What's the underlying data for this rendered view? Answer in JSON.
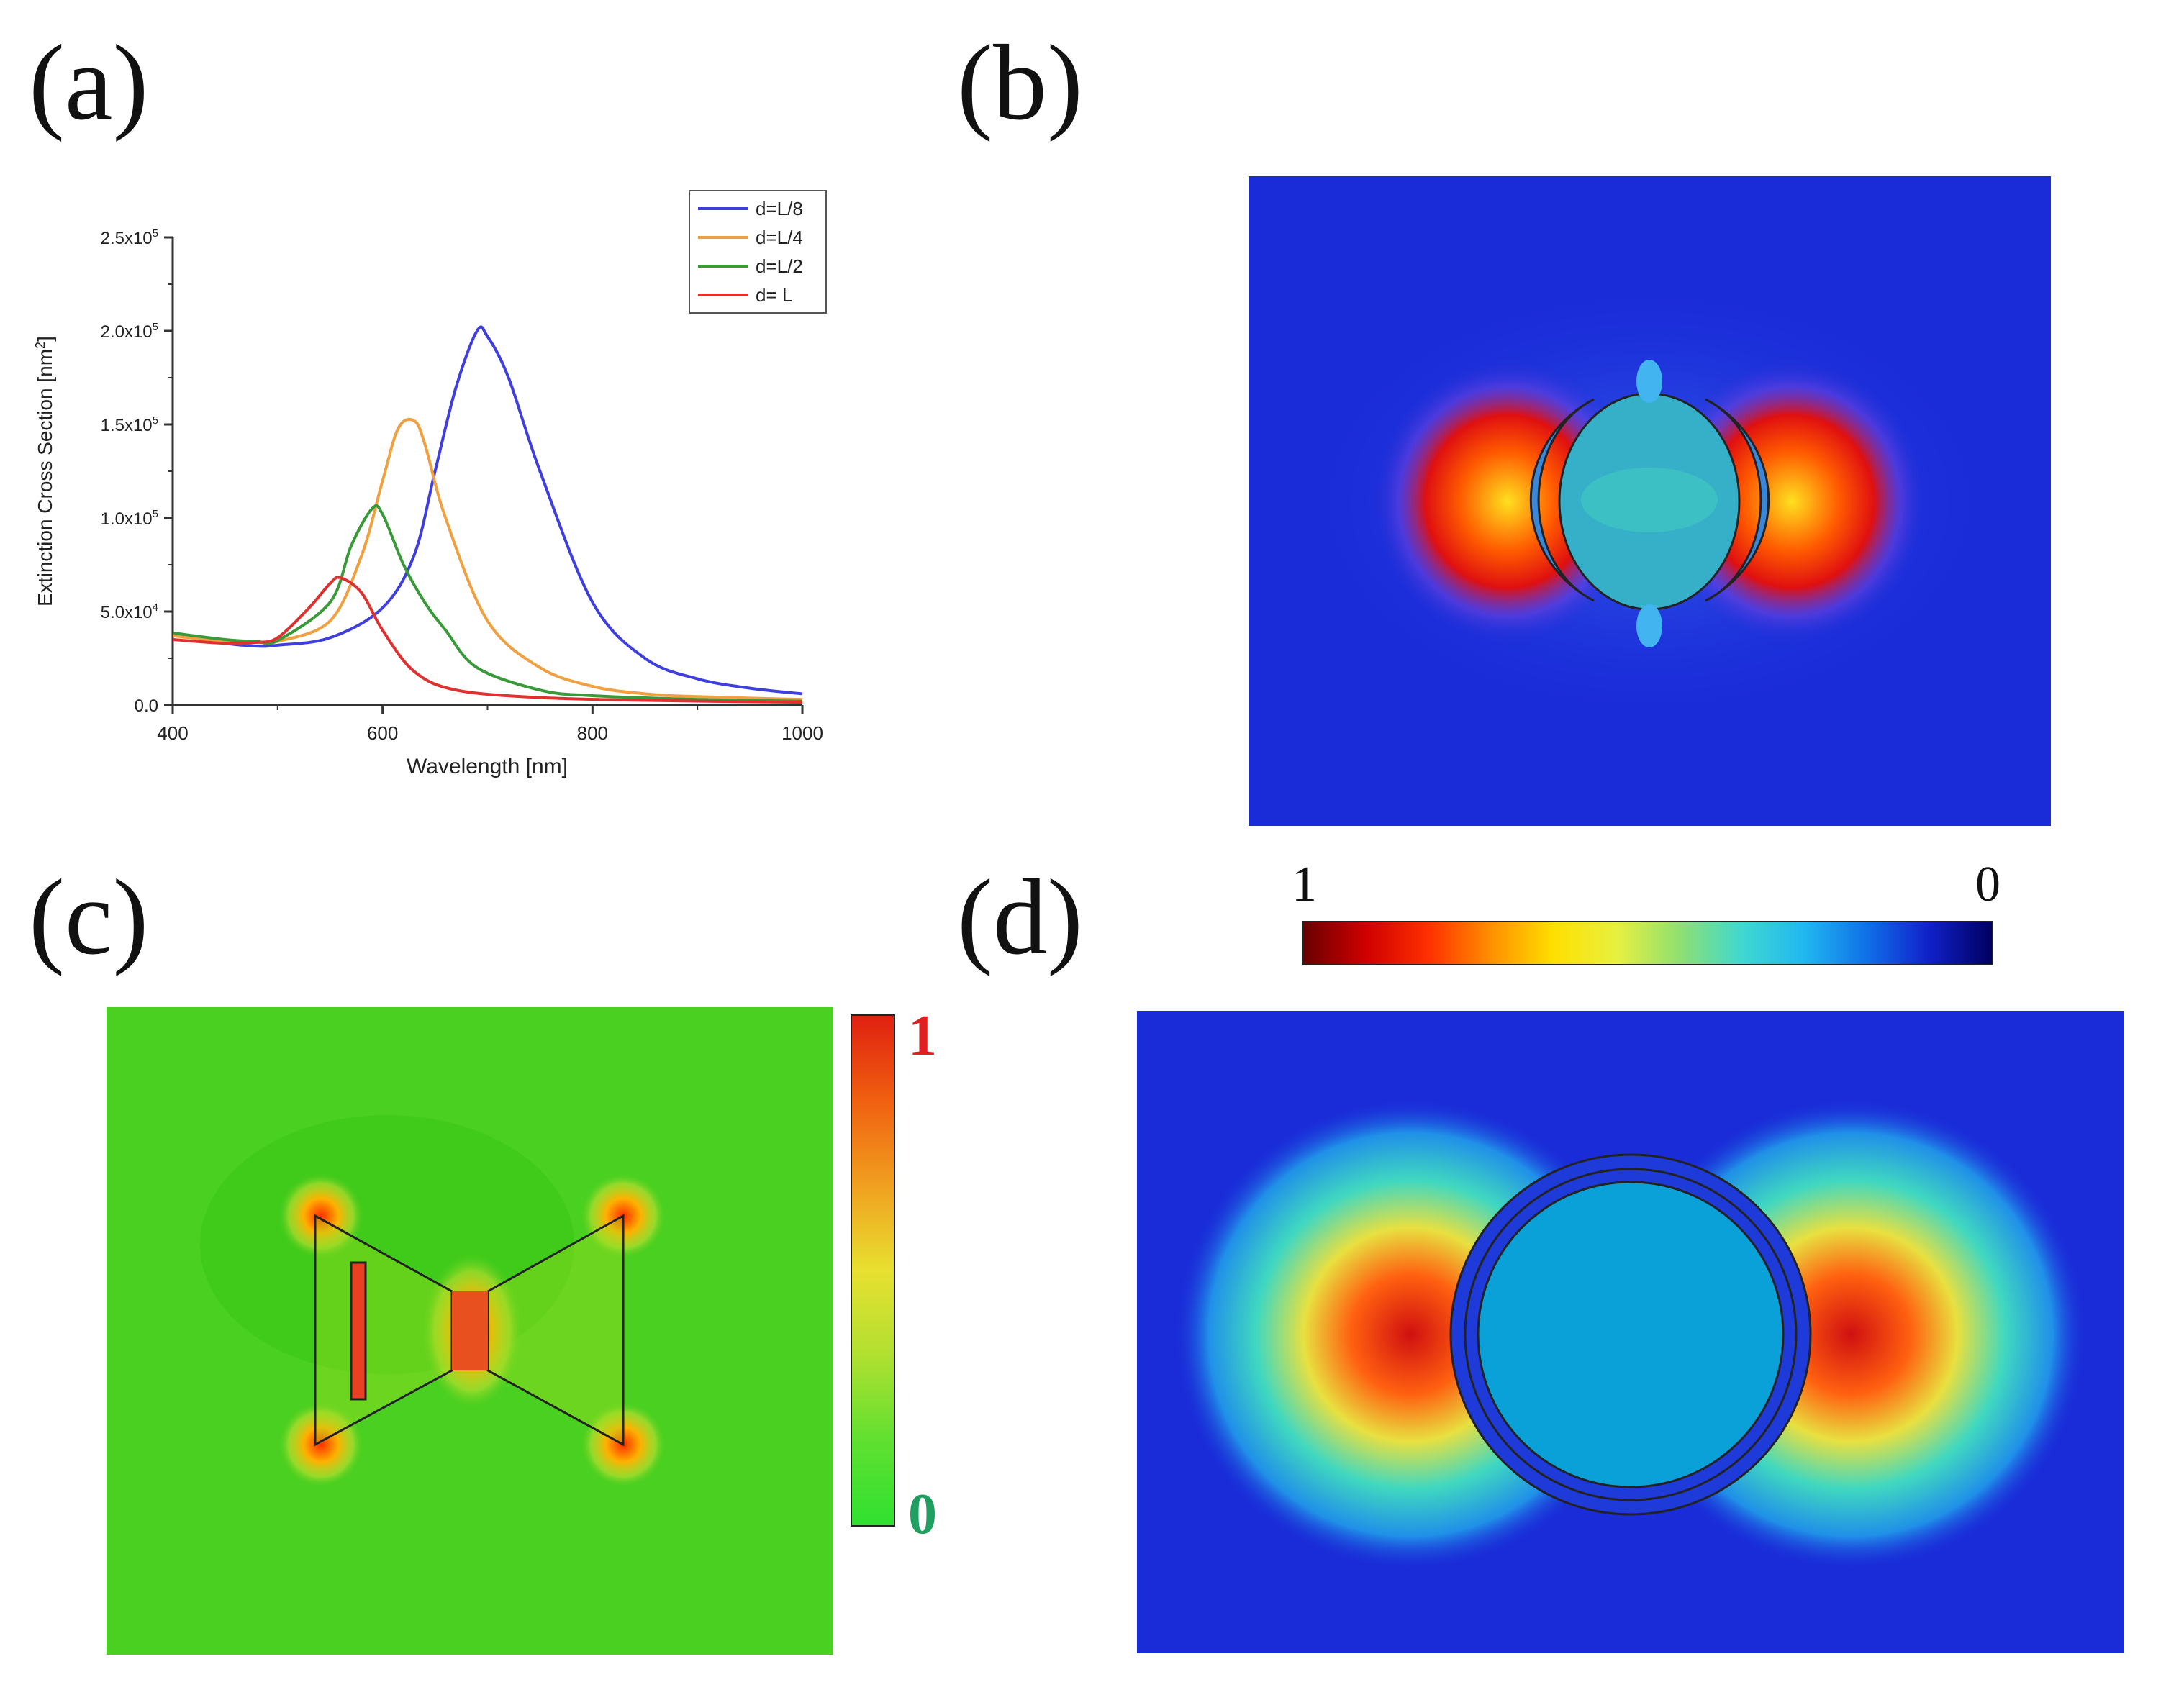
{
  "figure": {
    "labels": {
      "a": "(a)",
      "b": "(b)",
      "c": "(c)",
      "d": "(d)"
    }
  },
  "chart_data": {
    "type": "line",
    "title": "",
    "xlabel": "Wavelength [nm]",
    "ylabel_main": "Extinction Cross Section [nm",
    "ylabel_sup": "2",
    "ylabel_end": "]",
    "xlim": [
      400,
      1000
    ],
    "ylim": [
      0,
      250000
    ],
    "xticks": [
      {
        "value": 400,
        "label": "400"
      },
      {
        "value": 600,
        "label": "600"
      },
      {
        "value": 800,
        "label": "800"
      },
      {
        "value": 1000,
        "label": "1000"
      }
    ],
    "yticks": [
      {
        "value": 0,
        "base": "0.0",
        "exp": ""
      },
      {
        "value": 50000,
        "base": "5.0x10",
        "exp": "4"
      },
      {
        "value": 100000,
        "base": "1.0x10",
        "exp": "5"
      },
      {
        "value": 150000,
        "base": "1.5x10",
        "exp": "5"
      },
      {
        "value": 200000,
        "base": "2.0x10",
        "exp": "5"
      },
      {
        "value": 250000,
        "base": "2.5x10",
        "exp": "5"
      }
    ],
    "legend_position": "top-right",
    "series": [
      {
        "name": "d=L/8",
        "color": "#3f3fe0",
        "x": [
          400,
          450,
          480,
          500,
          550,
          600,
          630,
          650,
          670,
          690,
          700,
          720,
          750,
          800,
          850,
          900,
          950,
          1000
        ],
        "y": [
          38000,
          33000,
          31500,
          32000,
          36000,
          52000,
          80000,
          125000,
          170000,
          200000,
          197000,
          175000,
          125000,
          55000,
          25000,
          14000,
          9000,
          6000
        ]
      },
      {
        "name": "d=L/4",
        "color": "#f0a040",
        "x": [
          400,
          450,
          480,
          500,
          550,
          580,
          600,
          615,
          630,
          640,
          660,
          700,
          750,
          800,
          850,
          900,
          1000
        ],
        "y": [
          37000,
          34000,
          33500,
          34000,
          45000,
          80000,
          120000,
          148000,
          152000,
          140000,
          100000,
          45000,
          20000,
          10000,
          6000,
          4500,
          3000
        ]
      },
      {
        "name": "d=L/2",
        "color": "#3a9a3a",
        "x": [
          400,
          450,
          480,
          500,
          550,
          570,
          590,
          600,
          620,
          640,
          660,
          690,
          750,
          800,
          900,
          1000
        ],
        "y": [
          38500,
          35000,
          34000,
          34500,
          55000,
          85000,
          105000,
          102000,
          75000,
          55000,
          40000,
          20000,
          8000,
          5000,
          3000,
          2000
        ]
      },
      {
        "name": "d= L",
        "color": "#e03030",
        "x": [
          400,
          450,
          480,
          500,
          530,
          550,
          560,
          580,
          600,
          630,
          670,
          750,
          850,
          1000
        ],
        "y": [
          35000,
          33000,
          33500,
          36000,
          52000,
          65000,
          68000,
          60000,
          40000,
          18000,
          8000,
          4000,
          2500,
          1500
        ]
      }
    ]
  },
  "colorbar_bd": {
    "max_label": "1",
    "min_label": "0"
  },
  "colorbar_c": {
    "max_label": "1",
    "min_label": "0",
    "max_color": "#e02020",
    "min_color": "#20a060"
  }
}
